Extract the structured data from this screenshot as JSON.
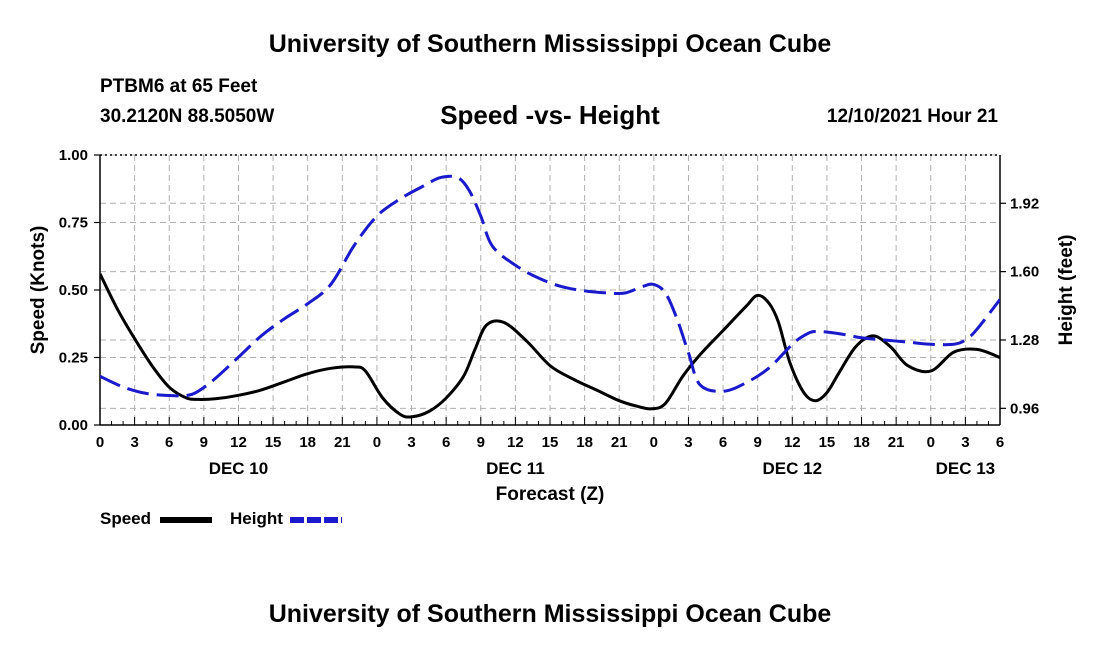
{
  "header": {
    "title": "University of Southern Mississippi Ocean Cube",
    "station": "PTBM6 at 65 Feet",
    "coordinates": "30.2120N  88.5050W",
    "subtitle": "Speed -vs- Height",
    "datestamp": "12/10/2021 Hour 21"
  },
  "footer": {
    "title": "University of Southern Mississippi Ocean Cube"
  },
  "colors": {
    "speed": "#000000",
    "height": "#1a1acc",
    "grid": "#b0b0b0"
  },
  "chart_data": {
    "type": "line",
    "xlabel": "Forecast (Z)",
    "ylabel_left": "Speed (Knots)",
    "ylabel_right": "Height (feet)",
    "x_range_hours": [
      0,
      78
    ],
    "x_ticks": [
      {
        "h": 0,
        "label": "0"
      },
      {
        "h": 3,
        "label": "3"
      },
      {
        "h": 6,
        "label": "6"
      },
      {
        "h": 9,
        "label": "9"
      },
      {
        "h": 12,
        "label": "12"
      },
      {
        "h": 15,
        "label": "15"
      },
      {
        "h": 18,
        "label": "18"
      },
      {
        "h": 21,
        "label": "21"
      },
      {
        "h": 24,
        "label": "0"
      },
      {
        "h": 27,
        "label": "3"
      },
      {
        "h": 30,
        "label": "6"
      },
      {
        "h": 33,
        "label": "9"
      },
      {
        "h": 36,
        "label": "12"
      },
      {
        "h": 39,
        "label": "15"
      },
      {
        "h": 42,
        "label": "18"
      },
      {
        "h": 45,
        "label": "21"
      },
      {
        "h": 48,
        "label": "0"
      },
      {
        "h": 51,
        "label": "3"
      },
      {
        "h": 54,
        "label": "6"
      },
      {
        "h": 57,
        "label": "9"
      },
      {
        "h": 60,
        "label": "12"
      },
      {
        "h": 63,
        "label": "15"
      },
      {
        "h": 66,
        "label": "18"
      },
      {
        "h": 69,
        "label": "21"
      },
      {
        "h": 72,
        "label": "0"
      },
      {
        "h": 75,
        "label": "3"
      },
      {
        "h": 78,
        "label": "6"
      }
    ],
    "day_labels": [
      {
        "h": 12,
        "label": "DEC 10"
      },
      {
        "h": 36,
        "label": "DEC 11"
      },
      {
        "h": 60,
        "label": "DEC 12"
      },
      {
        "h": 75,
        "label": "DEC 13"
      }
    ],
    "y_left": {
      "range": [
        0,
        1.0
      ],
      "ticks": [
        {
          "v": 0.0,
          "label": "0.00"
        },
        {
          "v": 0.25,
          "label": "0.25"
        },
        {
          "v": 0.5,
          "label": "0.50"
        },
        {
          "v": 0.75,
          "label": "0.75"
        },
        {
          "v": 1.0,
          "label": "1.00"
        }
      ]
    },
    "y_right": {
      "range": [
        0.882,
        2.146
      ],
      "ticks": [
        {
          "v": 0.96,
          "label": "0.96"
        },
        {
          "v": 1.28,
          "label": "1.28"
        },
        {
          "v": 1.6,
          "label": "1.60"
        },
        {
          "v": 1.92,
          "label": "1.92"
        }
      ]
    },
    "series": [
      {
        "name": "Speed",
        "axis": "left",
        "style": "solid",
        "x": [
          0,
          1.5,
          3,
          4.5,
          6,
          7.5,
          8.5,
          10,
          12,
          14,
          16,
          18,
          20,
          22,
          23,
          24.5,
          26,
          27,
          28.5,
          30,
          31.5,
          32.5,
          33.5,
          35,
          37,
          39,
          41,
          43,
          45,
          46.5,
          47.8,
          49,
          50.5,
          52,
          54,
          56,
          57,
          58,
          58.8,
          59.8,
          61,
          62,
          63,
          64,
          65.5,
          67,
          68.5,
          70,
          72,
          74,
          76,
          78
        ],
        "y": [
          0.56,
          0.43,
          0.32,
          0.22,
          0.14,
          0.1,
          0.095,
          0.097,
          0.11,
          0.13,
          0.16,
          0.19,
          0.21,
          0.215,
          0.2,
          0.1,
          0.04,
          0.03,
          0.05,
          0.1,
          0.18,
          0.28,
          0.37,
          0.38,
          0.31,
          0.22,
          0.17,
          0.13,
          0.09,
          0.07,
          0.06,
          0.08,
          0.18,
          0.26,
          0.35,
          0.44,
          0.48,
          0.45,
          0.38,
          0.23,
          0.12,
          0.09,
          0.12,
          0.19,
          0.29,
          0.33,
          0.29,
          0.22,
          0.2,
          0.27,
          0.28,
          0.25
        ]
      },
      {
        "name": "Height",
        "axis": "right",
        "style": "dashed",
        "x": [
          0,
          2,
          4,
          6,
          7.5,
          8.5,
          10,
          12,
          14,
          16,
          18,
          20,
          22,
          24,
          26,
          28,
          29.5,
          31,
          32,
          33,
          34,
          36,
          38,
          40,
          42,
          44,
          45.5,
          47,
          48,
          49,
          50,
          51,
          52,
          54,
          56,
          58,
          60,
          61,
          62,
          64,
          66,
          68,
          70,
          72,
          74,
          75,
          76,
          78
        ],
        "y": [
          1.11,
          1.06,
          1.03,
          1.02,
          1.02,
          1.04,
          1.1,
          1.2,
          1.3,
          1.38,
          1.45,
          1.54,
          1.72,
          1.86,
          1.94,
          2.0,
          2.04,
          2.04,
          1.98,
          1.86,
          1.72,
          1.63,
          1.57,
          1.53,
          1.51,
          1.5,
          1.5,
          1.53,
          1.54,
          1.5,
          1.38,
          1.22,
          1.07,
          1.04,
          1.08,
          1.15,
          1.26,
          1.3,
          1.32,
          1.31,
          1.29,
          1.28,
          1.27,
          1.26,
          1.26,
          1.28,
          1.33,
          1.47
        ]
      }
    ],
    "legend": [
      {
        "label": "Speed",
        "series": "Speed"
      },
      {
        "label": "Height",
        "series": "Height"
      }
    ]
  }
}
